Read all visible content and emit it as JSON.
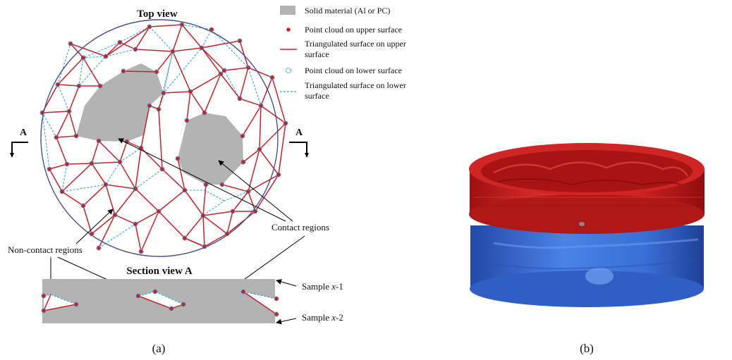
{
  "panel_a": {
    "top_view_title": "Top view",
    "section_title": "Section view A",
    "section_marker": "A",
    "legend": {
      "solid": "Solid material (Al or PC)",
      "upper_points": "Point cloud on upper surface",
      "upper_tri_l1": "Triangulated surface on upper",
      "upper_tri_l2": "surface",
      "lower_points": "Point cloud on lower surface",
      "lower_tri_l1": "Triangulated surface on lower",
      "lower_tri_l2": "surface"
    },
    "contact_regions": "Contact regions",
    "non_contact_regions": "Non-contact regions",
    "sample_1_prefix": "Sample ",
    "sample_1_var": "x",
    "sample_1_suffix": "-1",
    "sample_2_prefix": "Sample ",
    "sample_2_var": "x",
    "sample_2_suffix": "-2",
    "caption": "(a)"
  },
  "panel_b": {
    "caption": "(b)"
  },
  "colors": {
    "solid": "#b3b3b3",
    "upper": "#c0252b",
    "lower": "#3fa2dd",
    "red3d": "#d42020",
    "blue3d": "#3a6fd6"
  }
}
